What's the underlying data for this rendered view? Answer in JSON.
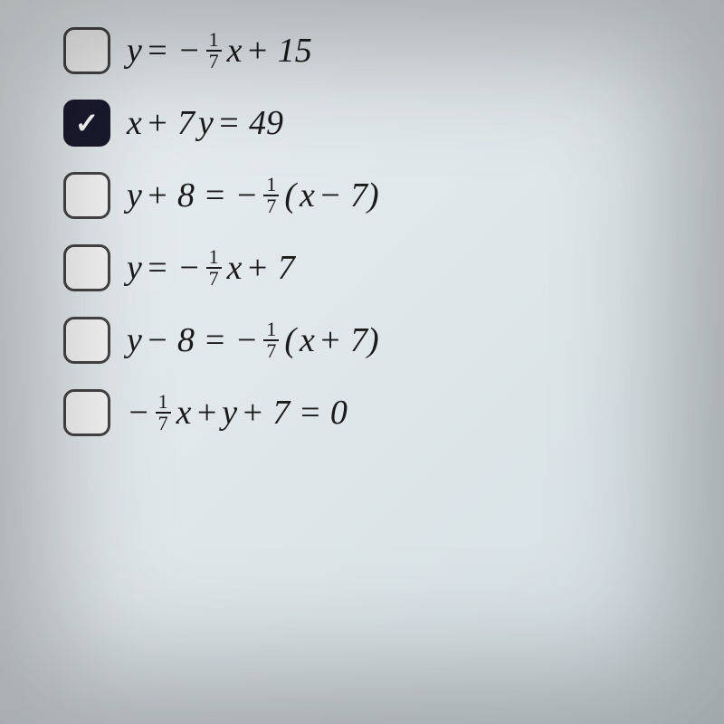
{
  "options": [
    {
      "checked": false,
      "equation_html": "<span style='font-style:italic'>y</span> = &minus;<span class='frac'><span class='num'>1</span><span class='den'>7</span></span><span style='font-style:italic'>x</span> + 15"
    },
    {
      "checked": true,
      "equation_html": "<span style='font-style:italic'>x</span> + 7<span style='font-style:italic'>y</span> = 49"
    },
    {
      "checked": false,
      "equation_html": "<span style='font-style:italic'>y</span> + 8 = &minus;<span class='frac'><span class='num'>1</span><span class='den'>7</span></span> (<span style='font-style:italic'>x</span> &minus; 7)"
    },
    {
      "checked": false,
      "equation_html": "<span style='font-style:italic'>y</span> = &minus;<span class='frac'><span class='num'>1</span><span class='den'>7</span></span><span style='font-style:italic'>x</span> + 7"
    },
    {
      "checked": false,
      "equation_html": "<span style='font-style:italic'>y</span> &minus; 8 = &minus;<span class='frac'><span class='num'>1</span><span class='den'>7</span></span> (<span style='font-style:italic'>x</span> + 7)"
    },
    {
      "checked": false,
      "equation_html": "&minus;<span class='frac'><span class='num'>1</span><span class='den'>7</span></span><span style='font-style:italic'>x</span> + <span style='font-style:italic'>y</span> + 7 = 0"
    }
  ],
  "colors": {
    "background_start": "#e8eef0",
    "background_end": "#d5dfe3",
    "checkbox_border": "#444444",
    "checkbox_checked_bg": "#1a1a2e",
    "text_color": "#1a1a1a"
  },
  "typography": {
    "equation_fontsize": 38,
    "fraction_fontsize": 22,
    "font_family": "Georgia, serif"
  },
  "layout": {
    "row_gap": 28,
    "checkbox_size": 52,
    "checkbox_radius": 12
  }
}
